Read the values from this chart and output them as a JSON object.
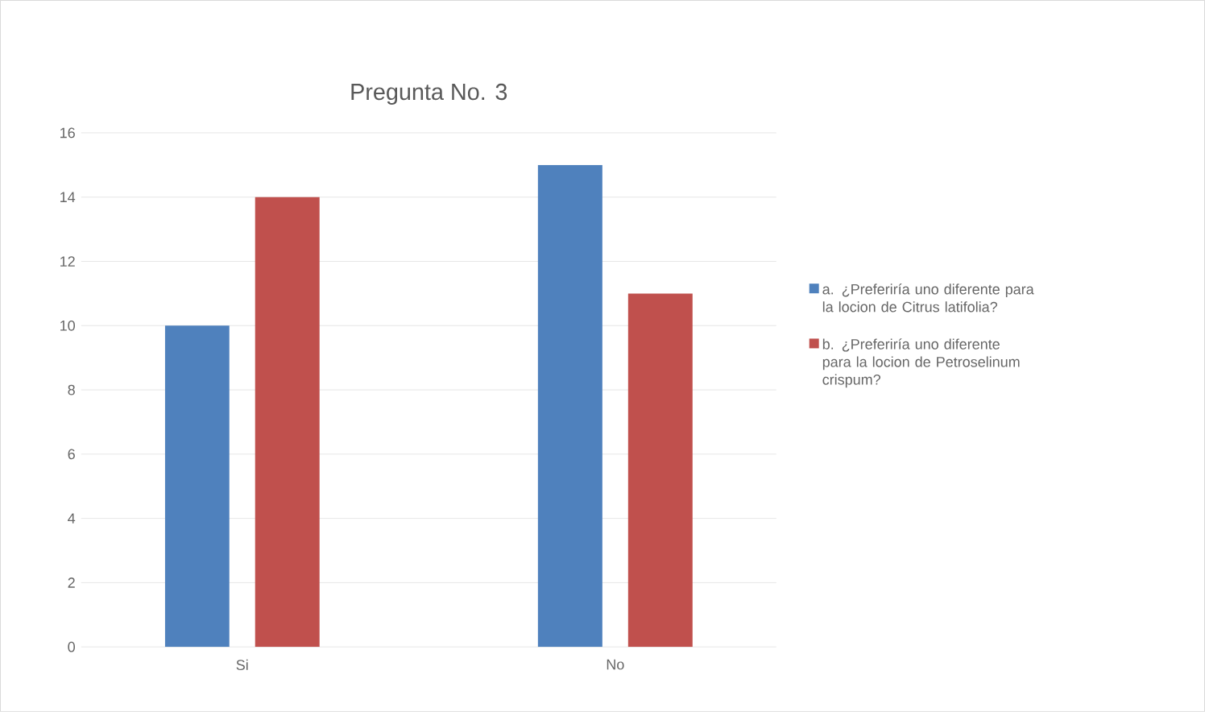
{
  "chart_data": {
    "type": "bar",
    "title": "Pregunta No. 3",
    "categories": [
      "Si",
      "No"
    ],
    "series": [
      {
        "name": "a. ¿Preferiría uno diferente para la locion de Citrus latifolia?",
        "color": "#4f81bd",
        "values": [
          10,
          15
        ]
      },
      {
        "name": "b. ¿Preferiría uno diferente para la locion de Petroselinum crispum?",
        "color": "#c0504d",
        "values": [
          14,
          11
        ]
      }
    ],
    "ylim": [
      0,
      16
    ],
    "yticks": [
      0,
      2,
      4,
      6,
      8,
      10,
      12,
      14,
      16
    ],
    "grid": "y",
    "legend": "right"
  }
}
